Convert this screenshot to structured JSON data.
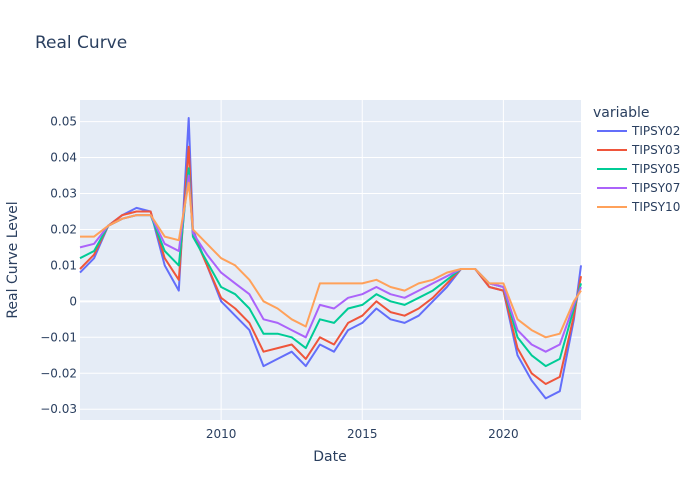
{
  "chart_data": {
    "type": "line",
    "title": "Real Curve",
    "xlabel": "Date",
    "ylabel": "Real Curve Level",
    "legend_title": "variable",
    "legend_position": "right",
    "grid": true,
    "xlim": [
      2005.0,
      2022.75
    ],
    "ylim": [
      -0.033,
      0.056
    ],
    "x_ticks": [
      2010,
      2015,
      2020
    ],
    "y_ticks": [
      -0.03,
      -0.02,
      -0.01,
      0,
      0.01,
      0.02,
      0.03,
      0.04,
      0.05
    ],
    "y_tick_labels": [
      "−0.03",
      "−0.02",
      "−0.01",
      "0",
      "0.01",
      "0.02",
      "0.03",
      "0.04",
      "0.05"
    ],
    "x": [
      2005.0,
      2005.5,
      2006.0,
      2006.5,
      2007.0,
      2007.5,
      2008.0,
      2008.5,
      2008.85,
      2009.0,
      2009.5,
      2010.0,
      2010.5,
      2011.0,
      2011.5,
      2012.0,
      2012.5,
      2013.0,
      2013.5,
      2014.0,
      2014.5,
      2015.0,
      2015.5,
      2016.0,
      2016.5,
      2017.0,
      2017.5,
      2018.0,
      2018.5,
      2019.0,
      2019.5,
      2020.0,
      2020.5,
      2021.0,
      2021.5,
      2022.0,
      2022.5,
      2022.75
    ],
    "series": [
      {
        "name": "TIPSY02",
        "color": "#636efa",
        "values": [
          0.008,
          0.012,
          0.021,
          0.024,
          0.026,
          0.025,
          0.01,
          0.003,
          0.051,
          0.02,
          0.01,
          0.0,
          -0.004,
          -0.008,
          -0.018,
          -0.016,
          -0.014,
          -0.018,
          -0.012,
          -0.014,
          -0.008,
          -0.006,
          -0.002,
          -0.005,
          -0.006,
          -0.004,
          0.0,
          0.004,
          0.009,
          0.009,
          0.004,
          0.003,
          -0.015,
          -0.022,
          -0.027,
          -0.025,
          -0.005,
          0.01
        ]
      },
      {
        "name": "TIPSY03",
        "color": "#ef553b",
        "values": [
          0.009,
          0.013,
          0.021,
          0.024,
          0.025,
          0.025,
          0.012,
          0.006,
          0.043,
          0.019,
          0.01,
          0.001,
          -0.002,
          -0.006,
          -0.014,
          -0.013,
          -0.012,
          -0.016,
          -0.01,
          -0.012,
          -0.006,
          -0.004,
          0.0,
          -0.003,
          -0.004,
          -0.002,
          0.001,
          0.005,
          0.009,
          0.009,
          0.004,
          0.003,
          -0.013,
          -0.02,
          -0.023,
          -0.021,
          -0.004,
          0.007
        ]
      },
      {
        "name": "TIPSY05",
        "color": "#00cc96",
        "values": [
          0.012,
          0.014,
          0.021,
          0.023,
          0.024,
          0.024,
          0.014,
          0.01,
          0.037,
          0.018,
          0.011,
          0.004,
          0.002,
          -0.002,
          -0.009,
          -0.009,
          -0.01,
          -0.013,
          -0.005,
          -0.006,
          -0.002,
          -0.001,
          0.002,
          0.0,
          -0.001,
          0.001,
          0.003,
          0.006,
          0.009,
          0.009,
          0.005,
          0.004,
          -0.01,
          -0.015,
          -0.018,
          -0.016,
          -0.002,
          0.005
        ]
      },
      {
        "name": "TIPSY07",
        "color": "#ab63fa",
        "values": [
          0.015,
          0.016,
          0.021,
          0.023,
          0.024,
          0.024,
          0.016,
          0.014,
          0.035,
          0.019,
          0.013,
          0.008,
          0.005,
          0.002,
          -0.005,
          -0.006,
          -0.008,
          -0.01,
          -0.001,
          -0.002,
          0.001,
          0.002,
          0.004,
          0.002,
          0.001,
          0.003,
          0.005,
          0.007,
          0.009,
          0.009,
          0.005,
          0.004,
          -0.008,
          -0.012,
          -0.014,
          -0.012,
          -0.001,
          0.004
        ]
      },
      {
        "name": "TIPSY10",
        "color": "#ffa15a",
        "values": [
          0.018,
          0.018,
          0.021,
          0.023,
          0.024,
          0.024,
          0.018,
          0.017,
          0.033,
          0.02,
          0.016,
          0.012,
          0.01,
          0.006,
          0.0,
          -0.002,
          -0.005,
          -0.007,
          0.005,
          0.005,
          0.005,
          0.005,
          0.006,
          0.004,
          0.003,
          0.005,
          0.006,
          0.008,
          0.009,
          0.009,
          0.005,
          0.005,
          -0.005,
          -0.008,
          -0.01,
          -0.009,
          0.0,
          0.003
        ]
      }
    ]
  }
}
